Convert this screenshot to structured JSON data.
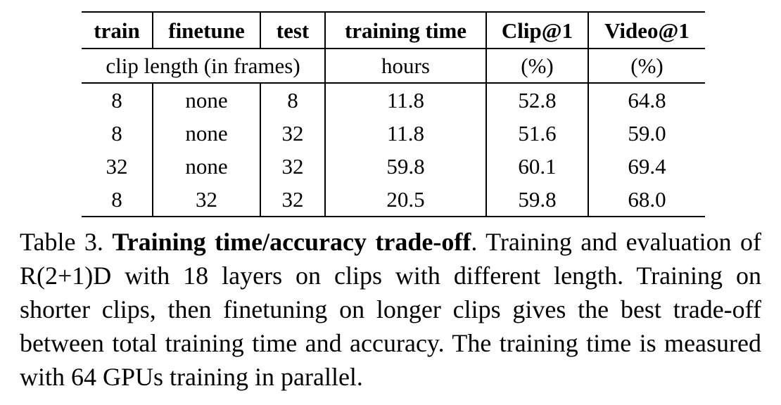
{
  "table": {
    "headers": [
      "train",
      "finetune",
      "test",
      "training time",
      "Clip@1",
      "Video@1"
    ],
    "subheaders": {
      "clip_length": "clip length (in frames)",
      "time_unit": "hours",
      "clip_unit": "(%)",
      "video_unit": "(%)"
    },
    "rows": [
      [
        "8",
        "none",
        "8",
        "11.8",
        "52.8",
        "64.8"
      ],
      [
        "8",
        "none",
        "32",
        "11.8",
        "51.6",
        "59.0"
      ],
      [
        "32",
        "none",
        "32",
        "59.8",
        "60.1",
        "69.4"
      ],
      [
        "8",
        "32",
        "32",
        "20.5",
        "59.8",
        "68.0"
      ]
    ]
  },
  "caption": {
    "label": "Table 3.",
    "title": "Training time/accuracy trade-off",
    "text_1": ". Training and eval­u­ation of R(2+1)D with 18 layers on clips with different length. Training on shorter clips, then finetuning on longer clips gives the best trade-off between total training time and accuracy. The train­ing time is measured with 64 GPUs training in parallel."
  }
}
